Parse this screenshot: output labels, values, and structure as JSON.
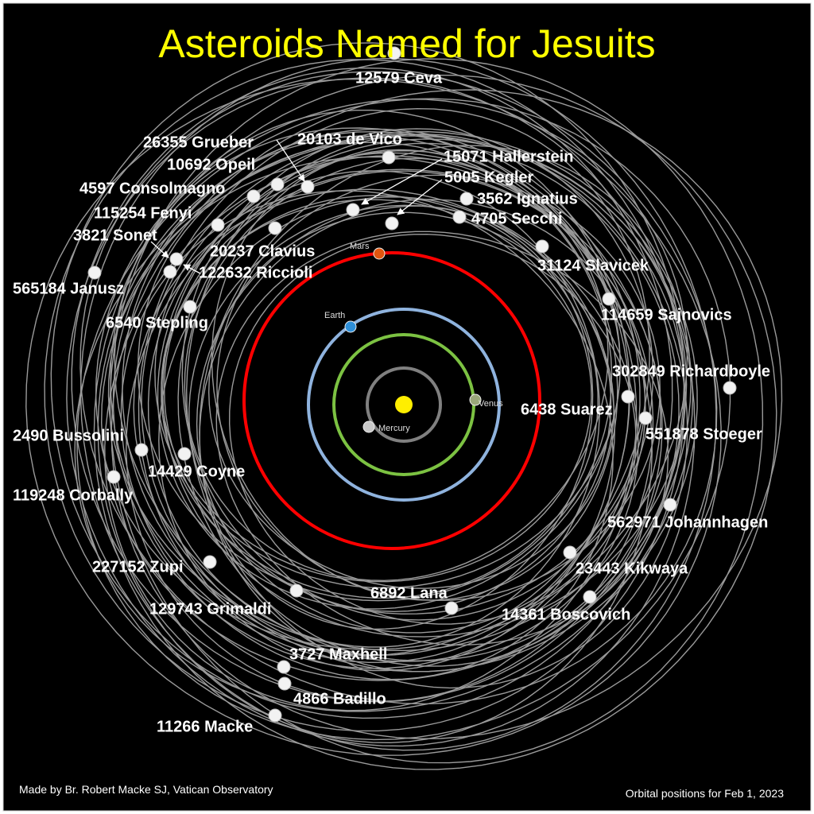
{
  "title": "Asteroids Named for Jesuits",
  "credit": "Made by Br. Robert Macke SJ, Vatican Observatory",
  "date_note": "Orbital positions for Feb 1, 2023",
  "colors": {
    "background": "#000000",
    "title": "#ffff00",
    "sun": "#ffee00",
    "mercury_orbit": "#808080",
    "venus_orbit": "#7cc242",
    "earth_orbit": "#8fb3de",
    "mars_orbit": "#ff0000",
    "asteroid_orbit": "#9a9a9a",
    "asteroid": "#f2f2f2"
  },
  "planets": [
    {
      "name": "Mercury",
      "color": "#c8c8c8"
    },
    {
      "name": "Venus",
      "color": "#9aa77a"
    },
    {
      "name": "Earth",
      "color": "#2e8fd8"
    },
    {
      "name": "Mars",
      "color": "#e0560f"
    }
  ],
  "asteroids": [
    "12579 Ceva",
    "26355 Grueber",
    "20103 de Vico",
    "10692 Opeil",
    "4597 Consolmagno",
    "15071 Hallerstein",
    "5005 Kegler",
    "3562 Ignatius",
    "4705 Secchi",
    "115254 Fenyi",
    "20237 Clavius",
    "3821 Sonet",
    "122632 Riccioli",
    "565184 Janusz",
    "31124 Slavicek",
    "6540 Stepling",
    "114659 Sajnovics",
    "302849 Richardboyle",
    "6438 Suarez",
    "551878 Stoeger",
    "2490 Bussolini",
    "14429 Coyne",
    "119248 Corbally",
    "562971 Johannhagen",
    "23443 Kikwaya",
    "227152 Zupi",
    "129743 Grimaldi",
    "6892 Lana",
    "14361 Boscovich",
    "3727 Maxhell",
    "4866 Badillo",
    "11266 Macke"
  ]
}
